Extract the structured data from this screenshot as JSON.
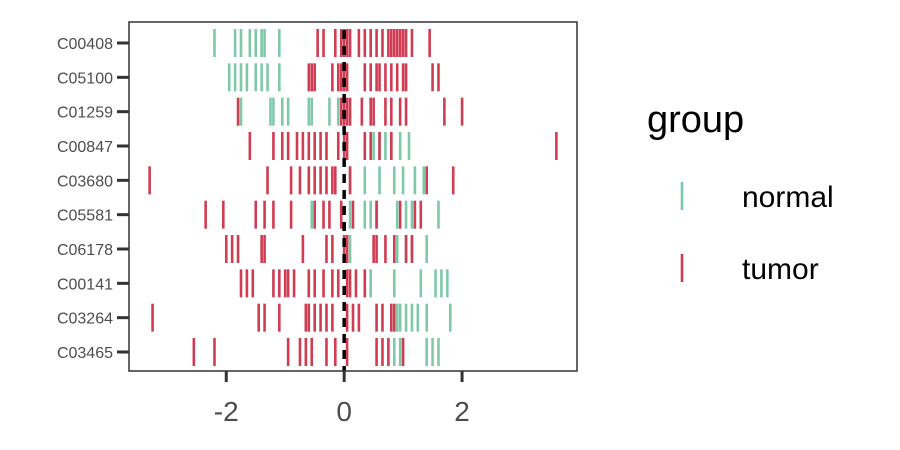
{
  "chart_data": {
    "type": "scatter",
    "mark": "vertical-tick",
    "title": "",
    "xlabel": "",
    "ylabel": "",
    "xlim": [
      -3.65,
      3.95
    ],
    "x_ticks": [
      -2,
      0,
      2
    ],
    "x_tick_labels": [
      "-2",
      "0",
      "2"
    ],
    "categories": [
      "C00408",
      "C05100",
      "C01259",
      "C00847",
      "C03680",
      "C05581",
      "C06178",
      "C00141",
      "C03264",
      "C03465"
    ],
    "grid": false,
    "legend": {
      "title": "group",
      "position": "right"
    },
    "colors": {
      "normal": "#7fc9a9",
      "tumor": "#d03c52",
      "zero_line": "#000000"
    },
    "series": [
      {
        "name": "normal",
        "points": {
          "C00408": [
            -2.2,
            -1.85,
            -1.75,
            -1.6,
            -1.5,
            -1.4,
            -1.35,
            -1.1
          ],
          "C05100": [
            -1.95,
            -1.85,
            -1.75,
            -1.65,
            -1.5,
            -1.4,
            -1.3,
            -1.1
          ],
          "C01259": [
            -1.75,
            -1.25,
            -1.2,
            -1.05,
            -0.95,
            -0.6,
            -0.55,
            -0.25,
            -0.1
          ],
          "C00847": [
            0.5,
            0.6,
            0.7,
            0.8,
            0.95,
            1.1
          ],
          "C03680": [
            0.1,
            0.35,
            0.6,
            0.85,
            1.0,
            1.2,
            1.35
          ],
          "C05581": [
            -0.55,
            0.1,
            0.35,
            0.45,
            0.55,
            0.9,
            1.05,
            1.15,
            1.6
          ],
          "C06178": [
            0.1,
            0.9,
            1.05,
            1.15,
            1.4
          ],
          "C00141": [
            0.35,
            0.45,
            0.85,
            1.3,
            1.55,
            1.65,
            1.75
          ],
          "C03264": [
            0.9,
            0.95,
            1.05,
            1.15,
            1.25,
            1.4,
            1.8
          ],
          "C03465": [
            0.85,
            0.95,
            1.4,
            1.5,
            1.6
          ]
        }
      },
      {
        "name": "tumor",
        "points": {
          "C00408": [
            -0.45,
            -0.35,
            -0.15,
            -0.05,
            0.0,
            0.05,
            0.1,
            0.25,
            0.35,
            0.45,
            0.55,
            0.65,
            0.75,
            0.8,
            0.85,
            0.9,
            0.95,
            1.0,
            1.05,
            1.15,
            1.45
          ],
          "C05100": [
            -0.6,
            -0.55,
            -0.5,
            -0.2,
            -0.1,
            -0.05,
            0.0,
            0.05,
            0.35,
            0.45,
            0.55,
            0.6,
            0.7,
            0.8,
            0.9,
            1.0,
            1.05,
            1.5,
            1.6
          ],
          "C01259": [
            -1.8,
            -0.05,
            0.0,
            0.05,
            0.1,
            0.3,
            0.45,
            0.5,
            0.7,
            0.8,
            0.95,
            1.05,
            1.7,
            2.0
          ],
          "C00847": [
            -1.6,
            -1.2,
            -1.05,
            -0.95,
            -0.8,
            -0.7,
            -0.6,
            -0.5,
            -0.4,
            -0.3,
            -0.1,
            0.0,
            0.05,
            0.35,
            0.45,
            0.6,
            0.8,
            3.6
          ],
          "C03680": [
            -3.3,
            -1.3,
            -0.9,
            -0.75,
            -0.6,
            -0.5,
            -0.4,
            -0.3,
            -0.2,
            -0.15,
            0.1,
            1.4,
            1.85
          ],
          "C05581": [
            -2.35,
            -2.05,
            -1.5,
            -1.35,
            -1.2,
            -0.9,
            -0.5,
            -0.35,
            -0.25,
            -0.05,
            0.15,
            0.55,
            0.95,
            1.2,
            1.3
          ],
          "C06178": [
            -2.0,
            -1.9,
            -1.8,
            -1.4,
            -1.35,
            -0.7,
            -0.3,
            -0.2,
            0.0,
            0.05,
            0.5,
            0.55,
            0.7,
            0.85,
            1.05,
            1.15
          ],
          "C00141": [
            -1.75,
            -1.65,
            -1.55,
            -1.2,
            -1.1,
            -1.0,
            -0.95,
            -0.85,
            -0.6,
            -0.5,
            -0.35,
            -0.2,
            -0.1,
            0.05,
            0.1,
            0.2,
            0.35
          ],
          "C03264": [
            -3.25,
            -1.45,
            -1.35,
            -1.1,
            -0.65,
            -0.6,
            -0.5,
            -0.4,
            -0.3,
            -0.2,
            0.05,
            0.15,
            0.25,
            0.55,
            0.65,
            0.8,
            0.85
          ],
          "C03465": [
            -2.55,
            -2.2,
            -0.95,
            -0.75,
            -0.65,
            -0.55,
            -0.3,
            -0.15,
            0.05,
            0.55,
            0.65,
            0.75,
            1.0
          ]
        }
      }
    ]
  }
}
